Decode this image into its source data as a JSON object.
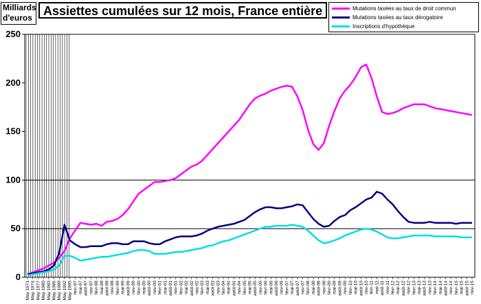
{
  "chart_data": {
    "type": "line",
    "title": "Assiettes cumulées sur 12 mois, France entière",
    "ylabel": "Milliards d'euros",
    "ylim": [
      0,
      250
    ],
    "yticks": [
      0,
      50,
      100,
      150,
      200,
      250
    ],
    "grid": "horizontal at 50 and 100",
    "legend": "top-right",
    "x_labels": [
      "May 1971",
      "May 1974",
      "May 1977",
      "May 1980",
      "May 1983",
      "May 1986",
      "May 1989",
      "May 1992",
      "May 1995",
      "févr-97",
      "mai-97",
      "août-97",
      "nov-97",
      "févr-98",
      "mai-98",
      "août-98",
      "nov-98",
      "févr-99",
      "mai-99",
      "août-99",
      "nov-99",
      "févr-00",
      "mai-00",
      "août-00",
      "nov-00",
      "févr-01",
      "mai-01",
      "août-01",
      "nov-01",
      "févr-02",
      "mai-02",
      "août-02",
      "nov-02",
      "févr-03",
      "mai-03",
      "août-03",
      "nov-03",
      "févr-04",
      "mai-04",
      "août-04",
      "nov-04",
      "févr-05",
      "mai-05",
      "août-05",
      "nov-05",
      "févr-06",
      "mai-06",
      "août-06",
      "nov-06",
      "févr-07",
      "mai-07",
      "août-07",
      "nov-07",
      "févr-08",
      "mai-08",
      "août-08",
      "nov-08",
      "févr-09",
      "mai-09",
      "août-09",
      "nov-09",
      "févr-10",
      "mai-10",
      "août-10",
      "nov-10",
      "févr-11",
      "mai-11",
      "août-11",
      "nov-11",
      "févr-12",
      "mai-12",
      "août-12",
      "nov-12",
      "févr-13",
      "mai-13",
      "août-13",
      "nov-13",
      "févr-14",
      "mai-14",
      "août-14",
      "nov-14",
      "févr-15",
      "mai-15",
      "août-15",
      "nov-15"
    ],
    "series": [
      {
        "name": "Mutations taxées au taux de droit commun",
        "color": "#ff00ff",
        "values": [
          3,
          5,
          7,
          9,
          12,
          15,
          20,
          27,
          40,
          48,
          56,
          55,
          54,
          55,
          53,
          57,
          58,
          60,
          64,
          70,
          78,
          86,
          90,
          94,
          98,
          98,
          99,
          100,
          102,
          106,
          110,
          114,
          116,
          120,
          126,
          132,
          138,
          144,
          150,
          156,
          162,
          170,
          178,
          184,
          187,
          189,
          192,
          194,
          196,
          197,
          196,
          186,
          172,
          152,
          137,
          131,
          138,
          156,
          171,
          184,
          192,
          198,
          206,
          216,
          219,
          205,
          186,
          170,
          168,
          169,
          171,
          174,
          176,
          178,
          178,
          178,
          176,
          174,
          173,
          172,
          171,
          170,
          169,
          168,
          167
        ]
      },
      {
        "name": "Mutations taxées au taux dérogatoire",
        "color": "#000080",
        "values": [
          3,
          4,
          5,
          6,
          8,
          12,
          25,
          54,
          38,
          34,
          31,
          31,
          32,
          32,
          32,
          34,
          35,
          35,
          34,
          34,
          37,
          37,
          37,
          35,
          34,
          34,
          37,
          39,
          41,
          42,
          42,
          42,
          43,
          45,
          48,
          50,
          52,
          53,
          54,
          55,
          57,
          59,
          63,
          67,
          70,
          72,
          72,
          71,
          71,
          72,
          73,
          75,
          74,
          67,
          60,
          55,
          52,
          53,
          58,
          62,
          64,
          69,
          72,
          76,
          80,
          82,
          88,
          86,
          80,
          75,
          68,
          62,
          57,
          56,
          56,
          56,
          57,
          56,
          56,
          56,
          56,
          55,
          56,
          56,
          56
        ]
      },
      {
        "name": "Inscriptions d'hypothèque",
        "color": "#00e0e0",
        "values": [
          2,
          3,
          4,
          5,
          6,
          8,
          12,
          22,
          22,
          20,
          17,
          18,
          19,
          20,
          21,
          21,
          22,
          23,
          24,
          25,
          27,
          28,
          28,
          27,
          24,
          24,
          24,
          25,
          26,
          26,
          27,
          28,
          29,
          30,
          32,
          33,
          35,
          37,
          38,
          40,
          42,
          44,
          46,
          48,
          50,
          52,
          52,
          53,
          53,
          53,
          54,
          53,
          52,
          48,
          43,
          38,
          35,
          36,
          38,
          40,
          43,
          45,
          47,
          49,
          50,
          49,
          47,
          44,
          41,
          40,
          40,
          41,
          42,
          43,
          43,
          43,
          43,
          42,
          42,
          42,
          42,
          42,
          41,
          41,
          41
        ]
      }
    ]
  }
}
